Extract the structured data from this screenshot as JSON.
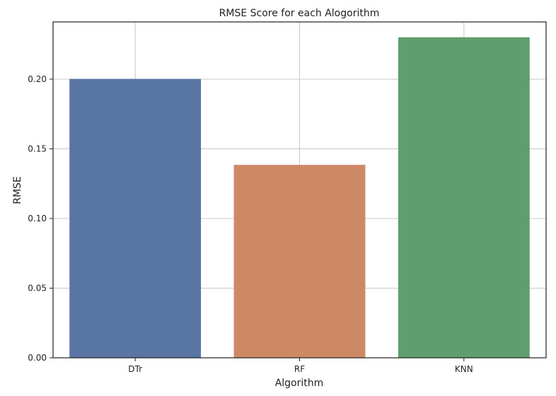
{
  "chart_data": {
    "type": "bar",
    "title": "RMSE Score for each Alogorithm",
    "xlabel": "Algorithm",
    "ylabel": "RMSE",
    "categories": [
      "DTr",
      "RF",
      "KNN"
    ],
    "values": [
      0.2002,
      0.1385,
      0.2301
    ],
    "colors": [
      "#5875a4",
      "#cc8963",
      "#5f9e6e"
    ],
    "ylim": [
      0,
      0.2411
    ],
    "yticks": [
      0.0,
      0.05,
      0.1,
      0.15,
      0.2
    ],
    "ytick_labels": [
      "0.00",
      "0.05",
      "0.10",
      "0.15",
      "0.20"
    ],
    "grid": true,
    "legend": "none"
  }
}
